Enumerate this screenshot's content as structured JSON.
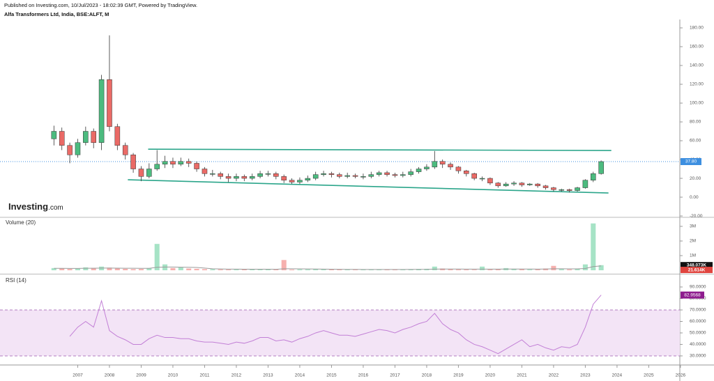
{
  "header": {
    "published": "Published on Investing.com, 10/Jul/2023 - 18:02:39 GMT, Powered by TradingView.",
    "symbol": "Alfa Transformers Ltd, India, BSE:ALFT, M",
    "watermark": {
      "brand": "Investing",
      "suffix": ".com"
    }
  },
  "chart_data": [
    {
      "type": "candlestick",
      "x": [
        2006.25,
        2006.5,
        2006.75,
        2007,
        2007.25,
        2007.5,
        2007.75,
        2008,
        2008.25,
        2008.5,
        2008.75,
        2009,
        2009.25,
        2009.5,
        2009.75,
        2010,
        2010.25,
        2010.5,
        2010.75,
        2011,
        2011.25,
        2011.5,
        2011.75,
        2012,
        2012.25,
        2012.5,
        2012.75,
        2013,
        2013.25,
        2013.5,
        2013.75,
        2014,
        2014.25,
        2014.5,
        2014.75,
        2015,
        2015.25,
        2015.5,
        2015.75,
        2016,
        2016.25,
        2016.5,
        2016.75,
        2017,
        2017.25,
        2017.5,
        2017.75,
        2018,
        2018.25,
        2018.5,
        2018.75,
        2019,
        2019.25,
        2019.5,
        2019.75,
        2020,
        2020.25,
        2020.5,
        2020.75,
        2021,
        2021.25,
        2021.5,
        2021.75,
        2022,
        2022.25,
        2022.5,
        2022.75,
        2023,
        2023.25,
        2023.5
      ],
      "open": [
        62,
        70,
        55,
        45,
        58,
        70,
        58,
        125,
        75,
        55,
        45,
        30,
        22,
        30,
        35,
        38,
        35,
        38,
        36,
        30,
        25,
        25,
        22,
        20,
        22,
        20,
        22,
        25,
        25,
        22,
        18,
        16,
        18,
        20,
        24,
        25,
        24,
        22,
        23,
        22,
        22,
        24,
        26,
        24,
        23,
        24,
        27,
        30,
        32,
        38,
        35,
        32,
        28,
        25,
        20,
        20,
        15,
        12,
        14,
        15,
        13,
        14,
        12,
        10,
        8,
        8,
        7,
        10,
        18,
        25
      ],
      "high": [
        76,
        74,
        58,
        62,
        75,
        73,
        130,
        172,
        78,
        58,
        47,
        33,
        36,
        50,
        44,
        42,
        42,
        41,
        38,
        32,
        29,
        27,
        25,
        25,
        24,
        25,
        28,
        28,
        27,
        24,
        20,
        21,
        23,
        27,
        28,
        27,
        26,
        26,
        25,
        25,
        27,
        28,
        28,
        26,
        27,
        30,
        32,
        35,
        49,
        40,
        37,
        33,
        29,
        26,
        22,
        21,
        16,
        16,
        17,
        16,
        15,
        15,
        13,
        11,
        9,
        9,
        11,
        19,
        27,
        39
      ],
      "low": [
        55,
        50,
        36,
        42,
        55,
        52,
        50,
        70,
        50,
        40,
        26,
        17,
        20,
        28,
        31,
        31,
        33,
        32,
        27,
        22,
        22,
        19,
        16,
        17,
        17,
        18,
        20,
        22,
        19,
        15,
        14,
        14,
        16,
        18,
        22,
        21,
        20,
        20,
        20,
        19,
        20,
        22,
        22,
        21,
        21,
        22,
        25,
        28,
        30,
        31,
        29,
        25,
        22,
        18,
        17,
        13,
        10,
        11,
        12,
        11,
        12,
        10,
        8,
        6,
        6,
        5,
        6,
        9,
        16,
        24
      ],
      "close": [
        70,
        55,
        45,
        58,
        70,
        58,
        125,
        75,
        55,
        45,
        30,
        22,
        30,
        35,
        38,
        35,
        38,
        36,
        30,
        25,
        25,
        22,
        20,
        22,
        20,
        22,
        25,
        25,
        22,
        18,
        16,
        18,
        20,
        24,
        25,
        24,
        22,
        23,
        22,
        22,
        24,
        26,
        24,
        23,
        24,
        27,
        30,
        32,
        38,
        35,
        32,
        28,
        25,
        20,
        20,
        15,
        12,
        14,
        15,
        13,
        14,
        12,
        10,
        8,
        8,
        7,
        10,
        18,
        25,
        37.8
      ],
      "up_color": "#4cbb7f",
      "down_color": "#ea6a66",
      "xlim": [
        2004.55,
        2025.98
      ],
      "ylim": [
        -20.7,
        187.4
      ],
      "yticks": [
        {
          "value": -20,
          "label": "-20.00"
        },
        {
          "value": 0,
          "label": "0.00"
        },
        {
          "value": 20,
          "label": "20.00"
        },
        {
          "value": 40,
          "label": "40.00"
        },
        {
          "value": 60,
          "label": "60.00"
        },
        {
          "value": 80,
          "label": "80.00"
        },
        {
          "value": 100,
          "label": "100.00"
        },
        {
          "value": 120,
          "label": "120.00"
        },
        {
          "value": 140,
          "label": "140.00"
        },
        {
          "value": 160,
          "label": "160.00"
        },
        {
          "value": 180,
          "label": "180.00"
        }
      ],
      "last": {
        "value": 37.8,
        "label": "37.80",
        "color": "#3d8fe0"
      },
      "trendlines": [
        {
          "x": [
            2009.22,
            2023.82
          ],
          "y": [
            51,
            49.6
          ]
        },
        {
          "x": [
            2008.58,
            2023.73
          ],
          "y": [
            18.5,
            4.4
          ]
        }
      ],
      "trendline_color": "#2aa58a"
    },
    {
      "type": "volume",
      "title": "Volume (20)",
      "values": [
        150000,
        120000,
        90000,
        110000,
        200000,
        160000,
        250000,
        180000,
        120000,
        100000,
        80000,
        90000,
        150000,
        1800000,
        400000,
        150000,
        200000,
        120000,
        100000,
        80000,
        70000,
        60000,
        50000,
        60000,
        50000,
        60000,
        70000,
        80000,
        60000,
        700000,
        50000,
        60000,
        60000,
        80000,
        70000,
        60000,
        50000,
        50000,
        40000,
        50000,
        60000,
        70000,
        60000,
        40000,
        50000,
        70000,
        90000,
        100000,
        250000,
        120000,
        80000,
        60000,
        50000,
        40000,
        250000,
        60000,
        80000,
        150000,
        100000,
        80000,
        60000,
        70000,
        120000,
        300000,
        80000,
        60000,
        100000,
        400000,
        3200000,
        348073
      ],
      "ma_values": [
        130000,
        130000,
        125000,
        125000,
        135000,
        140000,
        150000,
        150000,
        145000,
        140000,
        135000,
        130000,
        130000,
        200000,
        220000,
        220000,
        210000,
        200000,
        190000,
        150000,
        100000,
        90000,
        80000,
        75000,
        70000,
        70000,
        70000,
        70000,
        68000,
        100000,
        100000,
        95000,
        90000,
        85000,
        80000,
        70000,
        65000,
        60000,
        58000,
        55000,
        55000,
        55000,
        55000,
        55000,
        55000,
        58000,
        62000,
        65000,
        80000,
        85000,
        85000,
        82000,
        78000,
        75000,
        80000,
        80000,
        78000,
        85000,
        85000,
        85000,
        82000,
        80000,
        85000,
        100000,
        100000,
        95000,
        95000,
        120000,
        250000,
        300000
      ],
      "up_color": "#a6e3c6",
      "down_color": "#f6b0ae",
      "ma_color": "#9a9a9a",
      "xlim": [
        2004.55,
        2025.98
      ],
      "ylim": [
        -190000,
        3570000
      ],
      "yticks": [
        {
          "value": 1000000,
          "label": "1M"
        },
        {
          "value": 2000000,
          "label": "2M"
        },
        {
          "value": 3000000,
          "label": "3M"
        }
      ],
      "last_labels": [
        {
          "value": 348073,
          "label": "348.073K",
          "color": "#111111"
        },
        {
          "value": 21614,
          "label": "21.614K",
          "color": "#e0453f"
        }
      ]
    },
    {
      "type": "rsi",
      "title": "RSI (14)",
      "values": [
        null,
        null,
        47,
        55,
        60,
        55,
        78,
        52,
        47,
        44,
        40,
        40,
        45,
        48,
        46,
        46,
        45,
        45,
        43,
        42,
        42,
        41,
        40,
        42,
        41,
        43,
        46,
        46,
        43,
        44,
        42,
        45,
        47,
        50,
        52,
        50,
        48,
        48,
        47,
        49,
        51,
        53,
        52,
        50,
        53,
        55,
        58,
        60,
        67,
        58,
        53,
        50,
        44,
        40,
        38,
        35,
        32,
        36,
        40,
        44,
        38,
        40,
        37,
        35,
        38,
        37,
        40,
        55,
        75,
        82.9568
      ],
      "color": "#c27fd6",
      "band": [
        30,
        70
      ],
      "band_color": "#f3e4f6",
      "xlim": [
        2004.55,
        2025.98
      ],
      "ylim": [
        23.3,
        100.3
      ],
      "yticks": [
        {
          "value": 30,
          "label": "30.0000"
        },
        {
          "value": 40,
          "label": "40.0000"
        },
        {
          "value": 50,
          "label": "50.0000"
        },
        {
          "value": 60,
          "label": "60.0000"
        },
        {
          "value": 70,
          "label": "70.0000"
        },
        {
          "value": 80,
          "label": "80.0000"
        },
        {
          "value": 90,
          "label": "90.0000"
        }
      ],
      "last_label": {
        "value": 82.9568,
        "color": "#8e1c8e"
      },
      "xticks": [
        2007,
        2008,
        2009,
        2010,
        2011,
        2012,
        2013,
        2014,
        2015,
        2016,
        2017,
        2018,
        2019,
        2020,
        2021,
        2022,
        2023,
        2024,
        2025,
        2026
      ]
    }
  ]
}
